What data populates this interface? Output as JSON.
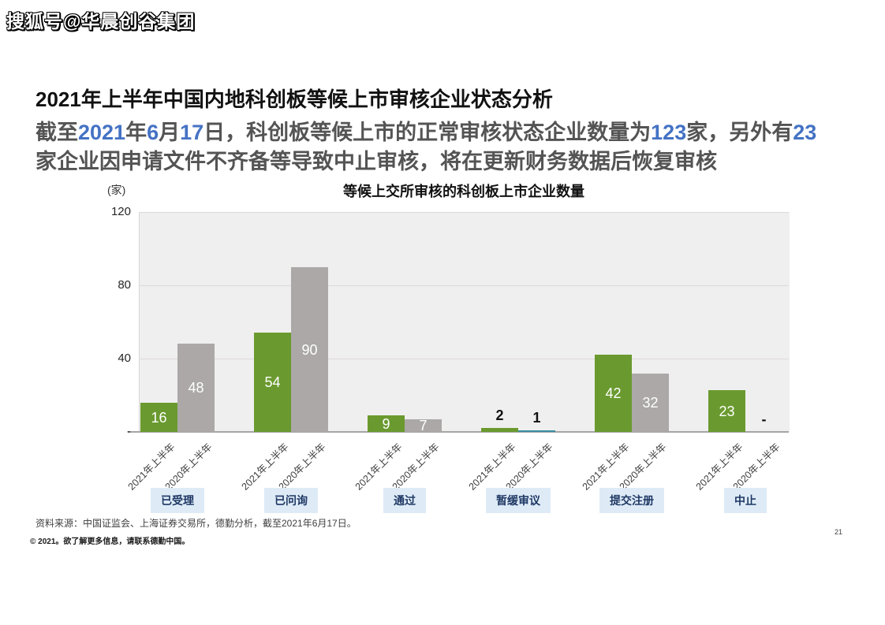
{
  "watermark": "搜狐号@华晨创谷集团",
  "page": {
    "title": "2021年上半年中国内地科创板等候上市审核企业状态分析",
    "subtitle": {
      "line1": [
        "截至",
        "2021",
        "年",
        "6",
        "月",
        "17",
        "日，科创板等候上市的正常审核状态企业数量为",
        "123",
        "家，另外有",
        "23"
      ],
      "line2": "家企业因申请文件不齐备等导致中止审核，将在更新财务数据后恢复审核"
    }
  },
  "theme": {
    "number_blue": "#4472C4",
    "subtitle_gray": "#545454",
    "badge_bg": "#DEEBF7",
    "badge_text": "#1F3864"
  },
  "chart_data": {
    "type": "bar",
    "title": "等候上交所审核的科创板上市企业数量",
    "unit_label": "(家)",
    "xlabel": "",
    "ylabel": "(家)",
    "ylim": [
      0,
      120
    ],
    "grid": true,
    "legend_position": "none",
    "yticks": [
      {
        "value": 120,
        "label": "120"
      },
      {
        "value": 80,
        "label": "80"
      },
      {
        "value": 40,
        "label": "40"
      },
      {
        "value": 0,
        "label": "-"
      }
    ],
    "categories": [
      "已受理",
      "已问询",
      "通过",
      "暂缓审议",
      "提交注册",
      "中止"
    ],
    "series": [
      {
        "name": "2021年上半年",
        "key": "2021H1",
        "color": "#6A9A2F",
        "values": [
          16,
          54,
          9,
          2,
          42,
          23
        ],
        "labels": [
          "16",
          "54",
          "9",
          "2",
          "42",
          "23"
        ],
        "bar_colors": [
          null,
          null,
          null,
          null,
          null,
          null
        ]
      },
      {
        "name": "2020年上半年",
        "key": "2020H1",
        "color": "#ABA8A7",
        "values": [
          48,
          90,
          7,
          1,
          32,
          null
        ],
        "labels": [
          "48",
          "90",
          "7",
          "1",
          "32",
          "-"
        ],
        "bar_colors": [
          null,
          null,
          null,
          "#3A8FA4",
          null,
          null
        ]
      }
    ]
  },
  "footer": {
    "source": "资料来源：中国证监会、上海证券交易所，德勤分析，截至2021年6月17日。",
    "copyright": "© 2021。欲了解更多信息，请联系德勤中国。",
    "page_number": "21"
  }
}
